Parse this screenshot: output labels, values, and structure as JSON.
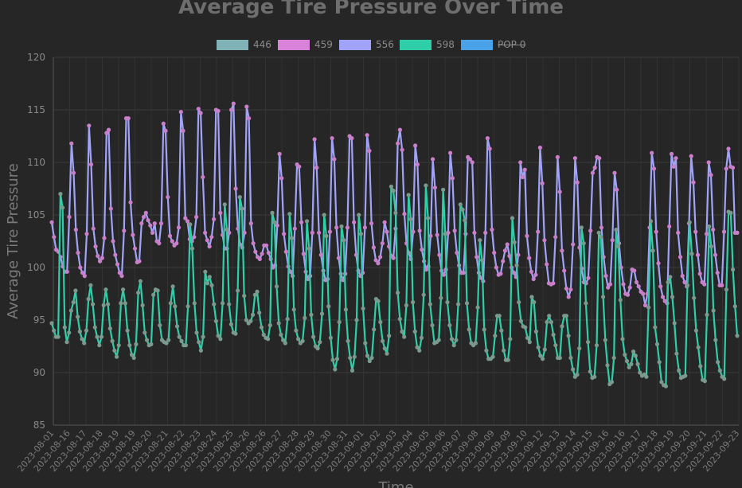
{
  "chart_data": {
    "type": "line",
    "title": "Average Tire Pressure Over Time",
    "xlabel": "Time",
    "ylabel": "Average Tire Pressure",
    "ylim": [
      85,
      120
    ],
    "yticks": [
      85,
      90,
      95,
      100,
      105,
      110,
      115,
      120
    ],
    "xticks": [
      "2023-08-01",
      "2023-08-16",
      "2023-08-17",
      "2023-08-18",
      "2023-08-19",
      "2023-08-19",
      "2023-08-20",
      "2023-08-21",
      "2023-08-22",
      "2023-08-23",
      "2023-08-24",
      "2023-08-25",
      "2023-08-26",
      "2023-08-26",
      "2023-08-27",
      "2023-08-28",
      "2023-08-29",
      "2023-08-30",
      "2023-08-31",
      "2023-09-01",
      "2023-09-02",
      "2023-09-03",
      "2023-09-04",
      "2023-09-05",
      "2023-09-06",
      "2023-09-07",
      "2023-09-08",
      "2023-09-09",
      "2023-09-09",
      "2023-09-10",
      "2023-09-12",
      "2023-09-13",
      "2023-09-14",
      "2023-09-15",
      "2023-09-16",
      "2023-09-16",
      "2023-09-17",
      "2023-09-18",
      "2023-09-19",
      "2023-09-20",
      "2023-09-21",
      "2023-09-22",
      "2023-09-23"
    ],
    "grid": true,
    "legend_position": "top",
    "series": [
      {
        "name": "446",
        "color": "#80b3b8",
        "hidden": false,
        "values": []
      },
      {
        "name": "459",
        "color": "#d982d9",
        "hidden": false,
        "values": []
      },
      {
        "name": "556",
        "color": "#a0a3f7",
        "hidden": false,
        "marker_color": "#c97fc9",
        "values": [
          104.3,
          102.9,
          101.7,
          101.5,
          101.0,
          100.1,
          99.6,
          99.6,
          104.8,
          111.8,
          109.0,
          103.6,
          101.4,
          100.0,
          99.5,
          99.2,
          103.2,
          113.5,
          109.8,
          103.7,
          102.0,
          101.1,
          100.6,
          100.9,
          102.8,
          112.8,
          113.1,
          105.6,
          102.5,
          101.2,
          100.3,
          99.5,
          99.2,
          103.5,
          114.2,
          114.2,
          106.2,
          103.1,
          101.8,
          100.5,
          100.6,
          104.2,
          104.8,
          105.2,
          104.5,
          104.0,
          103.3,
          104.2,
          102.5,
          102.3,
          104.2,
          113.7,
          113.0,
          106.7,
          103.0,
          102.5,
          102.1,
          102.3,
          103.8,
          114.8,
          113.0,
          104.7,
          104.4,
          102.7,
          102.5,
          102.9,
          104.8,
          115.1,
          114.7,
          108.6,
          103.3,
          102.6,
          102.0,
          102.9,
          104.6,
          115.0,
          114.9,
          105.2,
          103.1,
          101.8,
          101.8,
          103.3,
          115.0,
          115.6,
          107.5,
          103.7,
          102.2,
          101.9,
          103.3,
          115.3,
          114.2,
          104.2,
          102.3,
          101.5,
          101.0,
          100.8,
          101.3,
          102.1,
          102.1,
          101.4,
          100.8,
          100.0,
          100.2,
          104.0,
          110.8,
          108.5,
          103.2,
          101.5,
          100.1,
          99.6,
          99.2,
          103.7,
          109.8,
          109.6,
          104.3,
          101.3,
          99.6,
          98.9,
          99.2,
          103.3,
          112.2,
          109.5,
          103.3,
          101.2,
          99.7,
          98.8,
          98.9,
          103.4,
          112.3,
          110.3,
          103.8,
          100.9,
          99.4,
          98.8,
          99.4,
          103.8,
          112.5,
          112.3,
          104.3,
          101.2,
          99.7,
          99.2,
          99.5,
          103.8,
          112.6,
          111.1,
          104.2,
          101.9,
          100.7,
          100.4,
          101.0,
          102.3,
          104.3,
          103.4,
          102.0,
          101.1,
          100.9,
          103.7,
          111.8,
          113.1,
          111.2,
          105.1,
          102.3,
          101.4,
          100.8,
          103.4,
          111.6,
          109.8,
          103.5,
          101.7,
          100.6,
          99.8,
          100.1,
          103.0,
          110.3,
          107.6,
          103.1,
          101.2,
          99.7,
          99.3,
          99.8,
          103.3,
          110.9,
          108.5,
          103.5,
          101.4,
          100.2,
          99.5,
          99.5,
          103.2,
          110.5,
          110.3,
          110.0,
          103.3,
          101.0,
          99.5,
          99.0,
          98.7,
          103.3,
          112.3,
          111.3,
          103.6,
          101.4,
          100.0,
          99.3,
          99.4,
          100.6,
          101.6,
          102.2,
          101.1,
          100.0,
          99.5,
          99.1,
          101.2,
          110.0,
          108.6,
          109.3,
          103.0,
          100.9,
          99.6,
          98.9,
          99.3,
          103.4,
          111.4,
          108.0,
          102.6,
          100.3,
          98.5,
          98.4,
          98.5,
          102.9,
          110.5,
          107.2,
          101.6,
          99.7,
          98.0,
          97.2,
          97.9,
          102.2,
          110.4,
          108.1,
          101.9,
          99.9,
          98.6,
          98.5,
          99.0,
          103.5,
          109.0,
          109.5,
          110.5,
          110.4,
          103.8,
          101.0,
          99.2,
          98.1,
          98.4,
          102.6,
          109.0,
          107.4,
          102.3,
          100.0,
          98.4,
          97.5,
          97.4,
          98.1,
          99.8,
          99.7,
          98.6,
          98.2,
          97.7,
          97.5,
          96.4,
          97.5,
          103.8,
          110.9,
          109.4,
          103.4,
          100.4,
          98.2,
          97.2,
          96.8,
          96.6,
          103.9,
          110.8,
          109.6,
          110.4,
          103.3,
          101.0,
          99.2,
          98.6,
          98.2,
          104.2,
          110.6,
          108.1,
          103.4,
          101.2,
          99.4,
          98.6,
          98.4,
          103.2,
          110.0,
          108.8,
          103.6,
          101.2,
          99.5,
          98.3,
          98.3,
          103.4,
          109.4,
          111.3,
          109.6,
          109.5,
          103.3,
          103.3
        ]
      },
      {
        "name": "598",
        "color": "#2ecfa8",
        "hidden": false,
        "marker_color": "#7a9a8e",
        "values": [
          94.7,
          94.0,
          93.4,
          93.4,
          107.0,
          105.7,
          94.3,
          92.9,
          93.8,
          95.9,
          96.7,
          97.8,
          95.3,
          93.9,
          93.2,
          92.8,
          94.0,
          97.0,
          98.3,
          96.5,
          94.3,
          93.4,
          92.6,
          93.4,
          96.4,
          97.9,
          96.5,
          94.2,
          93.0,
          92.1,
          91.5,
          92.6,
          96.6,
          97.9,
          96.6,
          94.0,
          92.6,
          91.7,
          91.4,
          92.7,
          97.6,
          98.7,
          96.4,
          93.8,
          93.1,
          92.6,
          92.7,
          97.4,
          97.9,
          97.8,
          94.5,
          93.1,
          92.9,
          92.8,
          93.1,
          96.6,
          98.2,
          96.3,
          94.4,
          93.4,
          93.0,
          92.6,
          92.6,
          96.3,
          104.1,
          101.8,
          96.6,
          93.8,
          92.9,
          92.1,
          93.4,
          99.6,
          98.5,
          99.1,
          98.3,
          96.5,
          94.9,
          93.5,
          93.2,
          96.6,
          106.0,
          103.6,
          96.5,
          94.6,
          93.8,
          93.7,
          97.8,
          106.7,
          105.6,
          97.3,
          95.0,
          94.7,
          94.9,
          95.5,
          97.4,
          97.7,
          95.7,
          94.3,
          93.6,
          93.3,
          93.2,
          94.5,
          105.2,
          104.3,
          98.2,
          94.7,
          93.6,
          93.1,
          92.8,
          95.1,
          105.1,
          102.8,
          96.0,
          94.0,
          93.2,
          92.8,
          93.0,
          95.2,
          104.4,
          101.8,
          95.5,
          93.4,
          92.5,
          92.3,
          92.9,
          95.6,
          105.0,
          103.0,
          96.3,
          93.3,
          91.2,
          90.3,
          91.3,
          94.8,
          103.9,
          102.6,
          96.0,
          93.0,
          91.4,
          90.2,
          91.5,
          95.0,
          105.0,
          103.2,
          96.1,
          92.8,
          91.6,
          91.1,
          91.4,
          94.1,
          97.0,
          96.8,
          94.8,
          93.0,
          92.3,
          91.8,
          93.5,
          107.7,
          107.3,
          105.2,
          97.6,
          95.1,
          93.9,
          93.4,
          96.4,
          106.9,
          104.6,
          96.7,
          93.9,
          92.4,
          92.1,
          93.3,
          97.4,
          107.8,
          104.7,
          96.5,
          94.5,
          92.8,
          92.9,
          93.1,
          97.1,
          107.4,
          103.2,
          96.7,
          94.5,
          93.2,
          92.6,
          93.1,
          96.5,
          106.0,
          105.5,
          104.5,
          96.6,
          94.1,
          92.8,
          92.6,
          92.8,
          96.2,
          102.6,
          100.7,
          94.1,
          92.1,
          91.3,
          91.3,
          91.5,
          93.5,
          95.4,
          95.4,
          94.0,
          92.1,
          91.2,
          91.2,
          93.2,
          104.7,
          102.4,
          100.2,
          96.7,
          94.9,
          94.4,
          94.3,
          93.3,
          92.9,
          97.2,
          96.7,
          93.9,
          92.4,
          91.6,
          91.3,
          92.2,
          94.8,
          95.4,
          94.8,
          93.6,
          92.6,
          91.4,
          91.4,
          94.4,
          95.4,
          95.4,
          93.5,
          91.4,
          90.3,
          89.6,
          89.8,
          92.3,
          103.8,
          102.3,
          96.6,
          92.9,
          90.1,
          89.5,
          89.6,
          92.6,
          103.3,
          102.9,
          97.2,
          93.1,
          90.7,
          88.9,
          89.1,
          91.4,
          103.6,
          102.0,
          96.9,
          93.2,
          91.7,
          91.1,
          90.5,
          90.8,
          92.0,
          91.6,
          90.8,
          90.0,
          89.7,
          89.8,
          89.6,
          96.2,
          104.4,
          101.6,
          94.3,
          92.7,
          91.0,
          89.1,
          88.8,
          88.7,
          98.6,
          99.1,
          97.2,
          94.7,
          91.8,
          90.2,
          89.5,
          89.6,
          89.7,
          98.3,
          104.3,
          101.3,
          97.1,
          94.0,
          92.4,
          90.6,
          89.3,
          89.2,
          95.5,
          103.9,
          102.0,
          95.9,
          93.1,
          91.0,
          90.2,
          89.6,
          89.4,
          97.9,
          105.3,
          105.2,
          99.8,
          96.3,
          93.5
        ]
      },
      {
        "name": "POP 0",
        "color": "#4aa3e8",
        "hidden": true,
        "values": []
      }
    ]
  }
}
